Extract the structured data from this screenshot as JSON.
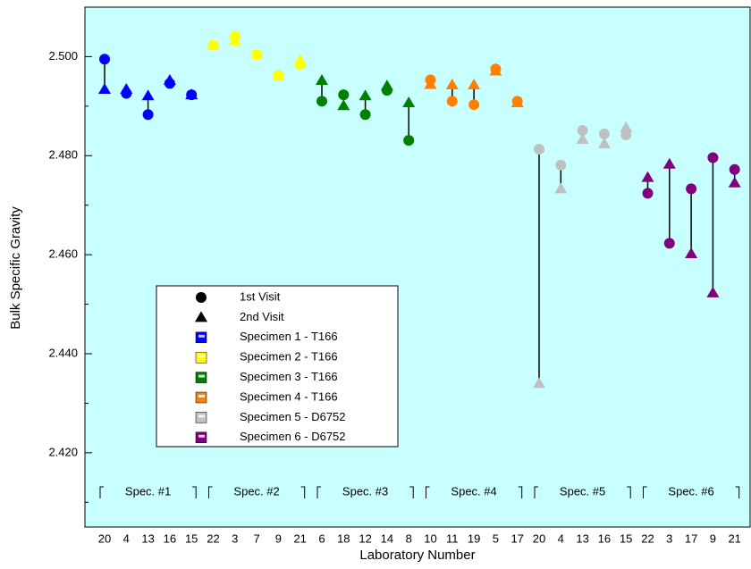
{
  "chart_data": {
    "type": "scatter",
    "x_label": "Laboratory Number",
    "y_label": "Bulk Specific Gravity",
    "ylim": [
      2.405,
      2.51
    ],
    "yticks": [
      {
        "value": 2.42,
        "label": "2.420"
      },
      {
        "value": 2.44,
        "label": "2.440"
      },
      {
        "value": 2.46,
        "label": "2.460"
      },
      {
        "value": 2.48,
        "label": "2.480"
      },
      {
        "value": 2.5,
        "label": "2.500"
      }
    ],
    "yminorticks": [
      2.41,
      2.43,
      2.45,
      2.47,
      2.49
    ],
    "grid": false,
    "background": "#c8ffff",
    "markers": [
      {
        "name": "1st Visit",
        "shape": "circle"
      },
      {
        "name": "2nd Visit",
        "shape": "triangle"
      }
    ],
    "series": [
      {
        "name": "Specimen 1 - T166",
        "group_label": "Spec. #1",
        "color": "#0000ff",
        "categories": [
          "20",
          "4",
          "13",
          "16",
          "15"
        ],
        "first_visit": [
          2.4995,
          2.4926,
          2.4883,
          2.4946,
          2.4923
        ],
        "second_visit": [
          2.4934,
          2.4934,
          2.4921,
          2.4952,
          2.4923
        ]
      },
      {
        "name": "Specimen 2 - T166",
        "group_label": "Spec. #2",
        "color": "#ffff00",
        "categories": [
          "22",
          "3",
          "7",
          "9",
          "21"
        ],
        "first_visit": [
          2.5023,
          2.5041,
          2.5004,
          2.4962,
          2.4984
        ],
        "second_visit": [
          2.5023,
          2.5032,
          2.5004,
          2.4962,
          2.4993
        ]
      },
      {
        "name": "Specimen 3 - T166",
        "group_label": "Spec. #3",
        "color": "#008000",
        "categories": [
          "6",
          "18",
          "12",
          "14",
          "8"
        ],
        "first_visit": [
          2.491,
          2.4923,
          2.4883,
          2.4932,
          2.4831
        ],
        "second_visit": [
          2.4952,
          2.4901,
          2.4921,
          2.4941,
          2.4907
        ]
      },
      {
        "name": "Specimen 4 - T166",
        "group_label": "Spec. #4",
        "color": "#ff8000",
        "categories": [
          "10",
          "11",
          "19",
          "5",
          "17"
        ],
        "first_visit": [
          2.4953,
          2.491,
          2.4903,
          2.4975,
          2.491
        ],
        "second_visit": [
          2.4944,
          2.4943,
          2.4943,
          2.4971,
          2.4907
        ]
      },
      {
        "name": "Specimen 5 - D6752",
        "group_label": "Spec. #5",
        "color": "#c0c0c0",
        "categories": [
          "20",
          "4",
          "13",
          "16",
          "15"
        ],
        "first_visit": [
          2.4813,
          2.4781,
          2.4851,
          2.4844,
          2.4842
        ],
        "second_visit": [
          2.434,
          2.4733,
          2.4833,
          2.4824,
          2.4857
        ]
      },
      {
        "name": "Specimen 6 - D6752",
        "group_label": "Spec. #6",
        "color": "#800080",
        "categories": [
          "22",
          "3",
          "17",
          "9",
          "21"
        ],
        "first_visit": [
          2.4724,
          2.4623,
          2.4733,
          2.4796,
          2.4772
        ],
        "second_visit": [
          2.4756,
          2.4783,
          2.4602,
          2.4523,
          2.4745
        ]
      }
    ]
  }
}
